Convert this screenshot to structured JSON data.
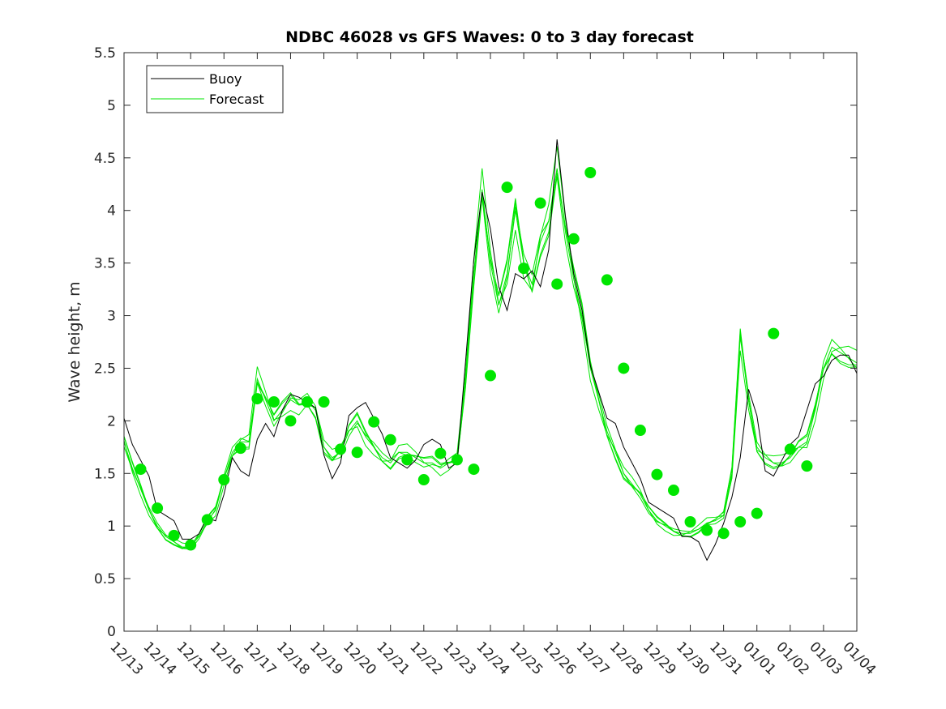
{
  "chart_data": {
    "type": "line",
    "title": "NDBC 46028 vs GFS Waves: 0 to 3 day forecast",
    "xlabel": "",
    "ylabel": "Wave height, m",
    "ylim": [
      0,
      5.5
    ],
    "xlim": [
      0,
      22
    ],
    "yticks": [
      "0",
      "0.5",
      "1",
      "1.5",
      "2",
      "2.5",
      "3",
      "3.5",
      "4",
      "4.5",
      "5",
      "5.5"
    ],
    "xtick_labels": [
      "12/13",
      "12/14",
      "12/15",
      "12/16",
      "12/17",
      "12/18",
      "12/19",
      "12/20",
      "12/21",
      "12/22",
      "12/23",
      "12/24",
      "12/25",
      "12/26",
      "12/27",
      "12/28",
      "12/29",
      "12/30",
      "12/31",
      "01/01",
      "01/02",
      "01/03",
      "01/04"
    ],
    "grid": false,
    "legend": {
      "position": "top-left",
      "entries": [
        {
          "name": "Buoy",
          "color": "#000000"
        },
        {
          "name": "Forecast",
          "color": "#00e600"
        }
      ]
    },
    "series": [
      {
        "name": "Buoy",
        "color": "#000000",
        "x": [
          0,
          0.25,
          0.5,
          0.75,
          1,
          1.25,
          1.5,
          1.75,
          2,
          2.25,
          2.5,
          2.75,
          3,
          3.25,
          3.5,
          3.75,
          4,
          4.25,
          4.5,
          4.75,
          5,
          5.25,
          5.5,
          5.75,
          6,
          6.25,
          6.5,
          6.75,
          7,
          7.25,
          7.5,
          7.75,
          8,
          8.25,
          8.5,
          8.75,
          9,
          9.25,
          9.5,
          9.75,
          10,
          10.25,
          10.5,
          10.75,
          11,
          11.25,
          11.5,
          11.75,
          12,
          12.25,
          12.5,
          12.75,
          13,
          13.25,
          13.5,
          13.75,
          14,
          14.25,
          14.5,
          14.75,
          15,
          15.25,
          15.5,
          15.75,
          16,
          16.25,
          16.5,
          16.75,
          17,
          17.25,
          17.5,
          17.75,
          18,
          18.25,
          18.5,
          18.75,
          19,
          19.25,
          19.5,
          19.75,
          20,
          20.25,
          20.5,
          20.75,
          21,
          21.25,
          21.5,
          21.75,
          22
        ],
        "values": [
          2.1,
          1.8,
          1.6,
          1.4,
          1.2,
          1.1,
          1.0,
          0.95,
          0.9,
          0.9,
          1.0,
          1.1,
          1.3,
          1.6,
          1.6,
          1.5,
          1.8,
          1.9,
          1.9,
          2.1,
          2.2,
          2.3,
          2.2,
          2.1,
          1.6,
          1.5,
          1.6,
          2.0,
          2.2,
          2.2,
          2.0,
          1.8,
          1.7,
          1.6,
          1.5,
          1.7,
          1.8,
          1.8,
          1.7,
          1.6,
          1.6,
          2.5,
          3.6,
          4.2,
          3.8,
          3.2,
          3.1,
          3.4,
          3.3,
          3.5,
          3.3,
          3.6,
          4.6,
          4.0,
          3.4,
          3.0,
          2.6,
          2.3,
          2.0,
          1.9,
          1.8,
          1.6,
          1.4,
          1.3,
          1.2,
          1.1,
          1.0,
          0.95,
          0.9,
          0.8,
          0.75,
          0.85,
          1.0,
          1.2,
          1.7,
          2.3,
          2.0,
          1.6,
          1.5,
          1.6,
          1.7,
          1.9,
          2.1,
          2.3,
          2.5,
          2.6,
          2.6,
          2.55,
          2.5
        ]
      },
      {
        "name": "Forecast",
        "color": "#00e600",
        "x": [
          0,
          0.25,
          0.5,
          0.75,
          1,
          1.25,
          1.5,
          1.75,
          2,
          2.25,
          2.5,
          2.75,
          3,
          3.25,
          3.5,
          3.75,
          4,
          4.25,
          4.5,
          4.75,
          5,
          5.25,
          5.5,
          5.75,
          6,
          6.25,
          6.5,
          6.75,
          7,
          7.25,
          7.5,
          7.75,
          8,
          8.25,
          8.5,
          8.75,
          9,
          9.25,
          9.5,
          9.75,
          10,
          10.25,
          10.5,
          10.75,
          11,
          11.25,
          11.5,
          11.75,
          12,
          12.25,
          12.5,
          12.75,
          13,
          13.25,
          13.5,
          13.75,
          14,
          14.25,
          14.5,
          14.75,
          15,
          15.25,
          15.5,
          15.75,
          16,
          16.25,
          16.5,
          16.75,
          17,
          17.25,
          17.5,
          17.75,
          18,
          18.25,
          18.5,
          18.75,
          19,
          19.25,
          19.5,
          19.75,
          20,
          20.25,
          20.5,
          20.75,
          21,
          21.25,
          21.5,
          21.75,
          22
        ],
        "values": [
          1.8,
          1.55,
          1.35,
          1.15,
          1.0,
          0.9,
          0.85,
          0.8,
          0.8,
          0.9,
          1.05,
          1.15,
          1.45,
          1.7,
          1.8,
          1.8,
          2.4,
          2.2,
          2.0,
          2.1,
          2.2,
          2.15,
          2.2,
          2.1,
          1.75,
          1.65,
          1.7,
          1.9,
          2.0,
          1.85,
          1.75,
          1.65,
          1.6,
          1.7,
          1.7,
          1.65,
          1.6,
          1.6,
          1.55,
          1.6,
          1.65,
          2.4,
          3.4,
          4.2,
          3.5,
          3.1,
          3.4,
          4.0,
          3.5,
          3.3,
          3.7,
          3.9,
          4.4,
          3.8,
          3.35,
          3.0,
          2.5,
          2.2,
          1.9,
          1.7,
          1.5,
          1.4,
          1.3,
          1.15,
          1.05,
          1.0,
          0.95,
          0.93,
          0.93,
          0.97,
          1.03,
          1.05,
          1.1,
          1.5,
          2.8,
          2.2,
          1.75,
          1.65,
          1.6,
          1.6,
          1.65,
          1.75,
          1.8,
          2.1,
          2.5,
          2.7,
          2.65,
          2.6,
          2.55
        ]
      }
    ],
    "forecast_markers": {
      "x": [
        0.5,
        1,
        1.5,
        2,
        2.5,
        3,
        3.5,
        4,
        4.5,
        5,
        5.5,
        6,
        6.5,
        7,
        7.5,
        8,
        8.5,
        9,
        9.5,
        10,
        10.5,
        11,
        11.5,
        12,
        12.5,
        13,
        13.5,
        14,
        14.5,
        15,
        15.5,
        16,
        16.5,
        17,
        17.5,
        18,
        18.5,
        19,
        19.5,
        20,
        20.5
      ],
      "values": [
        1.54,
        1.17,
        0.91,
        0.82,
        1.06,
        1.44,
        1.74,
        2.21,
        2.18,
        2.0,
        2.18,
        2.18,
        1.73,
        1.7,
        1.99,
        1.82,
        1.63,
        1.44,
        1.69,
        1.63,
        1.54,
        2.43,
        4.22,
        3.45,
        4.07,
        3.3,
        3.73,
        4.36,
        3.34,
        2.5,
        1.91,
        1.49,
        1.34,
        1.04,
        0.96,
        0.93,
        1.04,
        1.12,
        2.83,
        1.73,
        1.57
      ]
    }
  }
}
